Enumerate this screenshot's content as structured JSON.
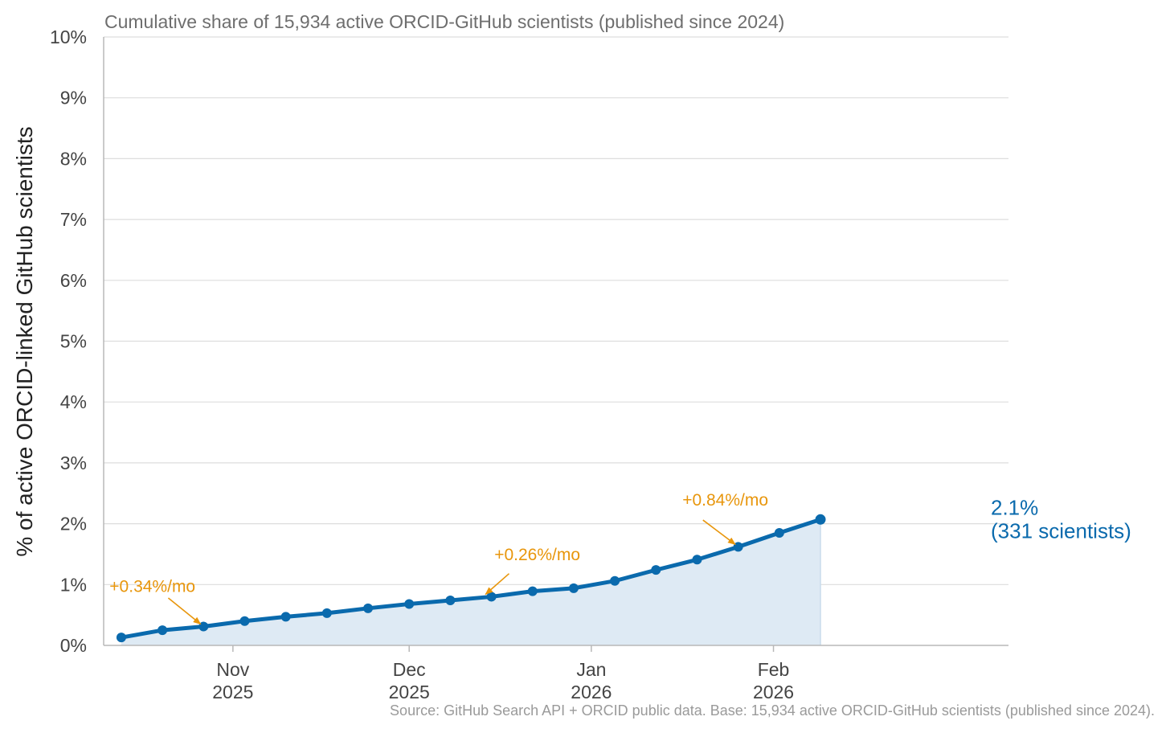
{
  "chart_data": {
    "type": "line",
    "title": "Cumulative share of 15,934 active ORCID-GitHub scientists (published since 2024)",
    "xlabel": "",
    "ylabel": "% of active ORCID-linked GitHub scientists",
    "ylim": [
      0,
      10
    ],
    "y_ticks": [
      0,
      1,
      2,
      3,
      4,
      5,
      6,
      7,
      8,
      9,
      10
    ],
    "y_tick_labels": [
      "0%",
      "1%",
      "2%",
      "3%",
      "4%",
      "5%",
      "6%",
      "7%",
      "8%",
      "9%",
      "10%"
    ],
    "x_range_days": [
      -22,
      132
    ],
    "x_ticks": [
      {
        "day": 0,
        "line1": "Nov",
        "line2": "2025"
      },
      {
        "day": 30,
        "line1": "Dec",
        "line2": "2025"
      },
      {
        "day": 61,
        "line1": "Jan",
        "line2": "2026"
      },
      {
        "day": 92,
        "line1": "Feb",
        "line2": "2026"
      }
    ],
    "series": [
      {
        "name": "Cumulative share",
        "color": "#0a6aad",
        "area_color": "#deeaf4",
        "points": [
          {
            "day": -19,
            "value": 0.13
          },
          {
            "day": -12,
            "value": 0.25
          },
          {
            "day": -5,
            "value": 0.31
          },
          {
            "day": 2,
            "value": 0.4
          },
          {
            "day": 9,
            "value": 0.47
          },
          {
            "day": 16,
            "value": 0.53
          },
          {
            "day": 23,
            "value": 0.61
          },
          {
            "day": 30,
            "value": 0.68
          },
          {
            "day": 37,
            "value": 0.74
          },
          {
            "day": 44,
            "value": 0.8
          },
          {
            "day": 51,
            "value": 0.89
          },
          {
            "day": 58,
            "value": 0.94
          },
          {
            "day": 65,
            "value": 1.06
          },
          {
            "day": 72,
            "value": 1.24
          },
          {
            "day": 79,
            "value": 1.41
          },
          {
            "day": 86,
            "value": 1.62
          },
          {
            "day": 93,
            "value": 1.85
          },
          {
            "day": 100,
            "value": 2.07
          }
        ]
      }
    ],
    "annotations": [
      {
        "text": "+0.34%/mo",
        "color": "#e8960c",
        "text_day": -21,
        "text_value": 0.88,
        "arrow_from_day": -11,
        "arrow_from_value": 0.78,
        "arrow_to_day": -5.5,
        "arrow_to_value": 0.35
      },
      {
        "text": "+0.26%/mo",
        "color": "#e8960c",
        "text_day": 44.5,
        "text_value": 1.4,
        "arrow_from_day": 47,
        "arrow_from_value": 1.18,
        "arrow_to_day": 43,
        "arrow_to_value": 0.84
      },
      {
        "text": "+0.84%/mo",
        "color": "#e8960c",
        "text_day": 76.5,
        "text_value": 2.3,
        "arrow_from_day": 80,
        "arrow_from_value": 2.06,
        "arrow_to_day": 85.5,
        "arrow_to_value": 1.66
      }
    ],
    "end_label": {
      "line1": "2.1%",
      "line2": "(331 scientists)",
      "value": 2.07
    },
    "grid": true
  },
  "source_note": "Source: GitHub Search API + ORCID public data. Base: 15,934 active ORCID-GitHub scientists (published since 2024)."
}
